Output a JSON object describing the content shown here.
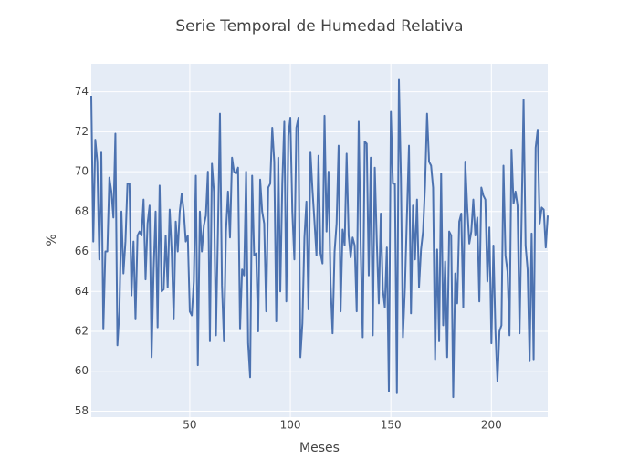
{
  "chart_data": {
    "type": "line",
    "title": "Serie Temporal de Humedad Relativa",
    "x_label": "Meses",
    "y_label": "%",
    "x": [
      1,
      2,
      3,
      4,
      5,
      6,
      7,
      8,
      9,
      10,
      11,
      12,
      13,
      14,
      15,
      16,
      17,
      18,
      19,
      20,
      21,
      22,
      23,
      24,
      25,
      26,
      27,
      28,
      29,
      30,
      31,
      32,
      33,
      34,
      35,
      36,
      37,
      38,
      39,
      40,
      41,
      42,
      43,
      44,
      45,
      46,
      47,
      48,
      49,
      50,
      51,
      52,
      53,
      54,
      55,
      56,
      57,
      58,
      59,
      60,
      61,
      62,
      63,
      64,
      65,
      66,
      67,
      68,
      69,
      70,
      71,
      72,
      73,
      74,
      75,
      76,
      77,
      78,
      79,
      80,
      81,
      82,
      83,
      84,
      85,
      86,
      87,
      88,
      89,
      90,
      91,
      92,
      93,
      94,
      95,
      96,
      97,
      98,
      99,
      100,
      101,
      102,
      103,
      104,
      105,
      106,
      107,
      108,
      109,
      110,
      111,
      112,
      113,
      114,
      115,
      116,
      117,
      118,
      119,
      120,
      121,
      122,
      123,
      124,
      125,
      126,
      127,
      128,
      129,
      130,
      131,
      132,
      133,
      134,
      135,
      136,
      137,
      138,
      139,
      140,
      141,
      142,
      143,
      144,
      145,
      146,
      147,
      148,
      149,
      150,
      151,
      152,
      153,
      154,
      155,
      156,
      157,
      158,
      159,
      160,
      161,
      162,
      163,
      164,
      165,
      166,
      167,
      168,
      169,
      170,
      171,
      172,
      173,
      174,
      175,
      176,
      177,
      178,
      179,
      180,
      181,
      182,
      183,
      184,
      185,
      186,
      187,
      188,
      189,
      190,
      191,
      192,
      193,
      194,
      195,
      196,
      197,
      198,
      199,
      200,
      201,
      202,
      203,
      204,
      205,
      206,
      207,
      208,
      209,
      210,
      211,
      212,
      213,
      214,
      215,
      216,
      217,
      218,
      219,
      220,
      221,
      222,
      223,
      224,
      225,
      226,
      227,
      228
    ],
    "series": [
      {
        "name": "Humedad",
        "color": "#4c72b0",
        "values": [
          73.8,
          66.5,
          71.6,
          70.5,
          65.6,
          71,
          62.1,
          66,
          66,
          69.7,
          69,
          67.7,
          71.9,
          61.3,
          63,
          68,
          64.9,
          66.5,
          69.4,
          69.4,
          63.8,
          66.5,
          62.6,
          66.8,
          67,
          66.8,
          68.6,
          64.6,
          67.4,
          68.3,
          60.7,
          65,
          68,
          62.2,
          69.3,
          64,
          64.1,
          66.8,
          64.2,
          68.1,
          66,
          62.6,
          67.5,
          66,
          68,
          68.9,
          68,
          66.5,
          66.8,
          63,
          62.8,
          64.5,
          69.8,
          60.3,
          68,
          66,
          67.3,
          67.8,
          70,
          61.5,
          70.4,
          69,
          61.8,
          67,
          72.9,
          64.3,
          61.5,
          67,
          69,
          66.7,
          70.7,
          70,
          69.9,
          70.2,
          62.1,
          65.1,
          64.8,
          70,
          61.4,
          59.7,
          69.8,
          65.8,
          65.9,
          62,
          69.6,
          68,
          67.4,
          63,
          69.2,
          69.4,
          72.2,
          70.5,
          62.5,
          70.7,
          64,
          69.4,
          72.5,
          63.5,
          71.8,
          72.7,
          68,
          65.6,
          72.2,
          72.7,
          60.7,
          62.4,
          66.7,
          68.5,
          63.1,
          71,
          69.1,
          67.5,
          65.8,
          70.8,
          65.9,
          65.4,
          72.8,
          67,
          70,
          64.4,
          61.9,
          66,
          67.4,
          71.3,
          63,
          67.1,
          66.3,
          70.9,
          66.8,
          65.7,
          66.7,
          66.3,
          63,
          72.5,
          66.2,
          61.7,
          71.5,
          71.4,
          64.8,
          70.7,
          61.8,
          70.2,
          66.5,
          63.4,
          67.9,
          64.1,
          63.2,
          66.2,
          59,
          73,
          69.4,
          69.4,
          58.9,
          74.6,
          69.7,
          61.7,
          64.2,
          67.8,
          71.3,
          62.9,
          68.3,
          65.6,
          68.6,
          64.2,
          66.1,
          67,
          69.3,
          72.9,
          70.5,
          70.3,
          69.2,
          60.6,
          66.1,
          61.5,
          69.9,
          62.3,
          65.5,
          60.7,
          67,
          66.8,
          58.7,
          64.9,
          63.4,
          67.5,
          67.9,
          63.2,
          70.5,
          68.2,
          66.4,
          67,
          68.6,
          66.8,
          67.7,
          63.5,
          69.2,
          68.8,
          68.6,
          64.5,
          67.2,
          61.4,
          66.3,
          62,
          59.5,
          62,
          62.3,
          70.3,
          65.8,
          65,
          61.8,
          71.1,
          68.4,
          69,
          68.3,
          61.9,
          67.6,
          73.6,
          66.3,
          65.1,
          60.5,
          66.9,
          60.6,
          71.2,
          72.1,
          67.4,
          68.2,
          68.1,
          66.2,
          67.8
        ]
      }
    ],
    "xlim": [
      1,
      228
    ],
    "ylim": [
      57.7,
      75.4
    ],
    "xticks": [
      50,
      100,
      150,
      200
    ],
    "yticks": [
      58,
      60,
      62,
      64,
      66,
      68,
      70,
      72,
      74
    ],
    "grid": true
  }
}
